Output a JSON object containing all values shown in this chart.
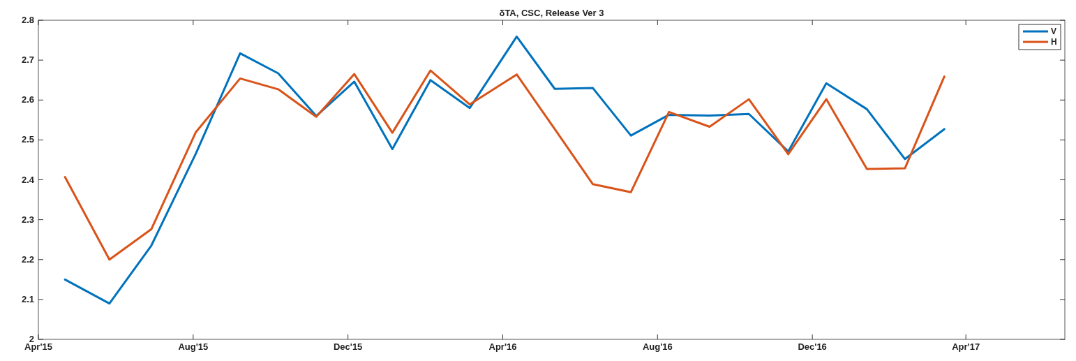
{
  "chart_data": {
    "type": "line",
    "title": "δTA,  CSC,   Release Ver 3",
    "x": [
      "2015-04-22",
      "2015-05-27",
      "2015-06-29",
      "2015-08-03",
      "2015-09-07",
      "2015-10-07",
      "2015-11-06",
      "2015-12-06",
      "2016-01-05",
      "2016-02-04",
      "2016-03-06",
      "2016-04-12",
      "2016-05-12",
      "2016-06-11",
      "2016-07-11",
      "2016-08-10",
      "2016-09-11",
      "2016-10-12",
      "2016-11-12",
      "2016-12-12",
      "2017-01-13",
      "2017-02-12",
      "2017-03-15"
    ],
    "series": [
      {
        "name": "V",
        "color": "#0072bd",
        "values": [
          2.15,
          2.09,
          2.235,
          2.465,
          2.717,
          2.667,
          2.56,
          2.646,
          2.477,
          2.65,
          2.58,
          2.759,
          2.628,
          2.63,
          2.511,
          2.563,
          2.561,
          2.565,
          2.471,
          2.642,
          2.577,
          2.452,
          2.527
        ]
      },
      {
        "name": "H",
        "color": "#d95319",
        "values": [
          2.407,
          2.2,
          2.276,
          2.519,
          2.654,
          2.627,
          2.558,
          2.665,
          2.518,
          2.674,
          2.589,
          2.664,
          2.527,
          2.389,
          2.369,
          2.57,
          2.533,
          2.602,
          2.464,
          2.602,
          2.427,
          2.429,
          2.659
        ]
      }
    ],
    "xlim": [
      "2015-04-01",
      "2017-06-18"
    ],
    "xticks": [
      {
        "value": "2015-04-01",
        "label": "Apr'15"
      },
      {
        "value": "2015-08-01",
        "label": "Aug'15"
      },
      {
        "value": "2015-12-01",
        "label": "Dec'15"
      },
      {
        "value": "2016-04-01",
        "label": "Apr'16"
      },
      {
        "value": "2016-08-01",
        "label": "Aug'16"
      },
      {
        "value": "2016-12-01",
        "label": "Dec'16"
      },
      {
        "value": "2017-04-01",
        "label": "Apr'17"
      }
    ],
    "ylim": [
      2,
      2.8
    ],
    "yticks": [
      2,
      2.1,
      2.2,
      2.3,
      2.4,
      2.5,
      2.6,
      2.7,
      2.8
    ],
    "grid": false,
    "legend": "top right",
    "marker": "none",
    "line_style": "solid"
  }
}
